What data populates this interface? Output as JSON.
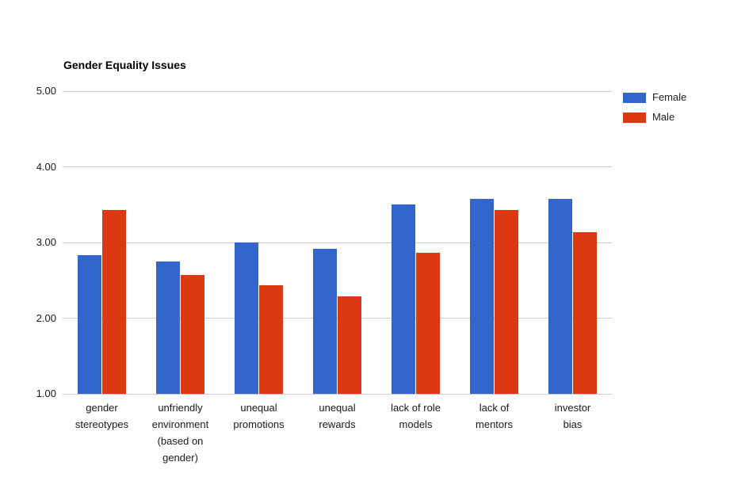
{
  "title": "Gender Equality Issues",
  "legend": {
    "position": "right",
    "items": [
      {
        "label": "Female",
        "color": "#3366CC"
      },
      {
        "label": "Male",
        "color": "#DC3912"
      }
    ]
  },
  "colors": {
    "female_series": "#3366CC",
    "male_series": "#DC3912",
    "gridline": "#cccccc",
    "background": "#ffffff",
    "text": "#1a1a1a"
  },
  "chart_data": {
    "type": "bar",
    "title": "Gender Equality Issues",
    "categories": [
      "gender stereotypes",
      "unfriendly environment (based on gender)",
      "unequal promotions",
      "unequal rewards",
      "lack of role models",
      "lack of mentors",
      "investor bias"
    ],
    "category_label_lines": [
      [
        "gender",
        "stereotypes"
      ],
      [
        "unfriendly",
        "environment",
        "(based on",
        "gender)"
      ],
      [
        "unequal",
        "promotions"
      ],
      [
        "unequal",
        "rewards"
      ],
      [
        "lack of role",
        "models"
      ],
      [
        "lack of",
        "mentors"
      ],
      [
        "investor",
        "bias"
      ]
    ],
    "series": [
      {
        "name": "Female",
        "color": "#3366CC",
        "values": [
          2.83,
          2.75,
          3.0,
          2.92,
          3.5,
          3.58,
          3.58
        ]
      },
      {
        "name": "Male",
        "color": "#DC3912",
        "values": [
          3.43,
          2.57,
          2.43,
          2.29,
          2.86,
          3.43,
          3.14
        ]
      }
    ],
    "xlabel": "",
    "ylabel": "",
    "ylim": [
      1,
      5
    ],
    "yticks": [
      5,
      4,
      3,
      2,
      1
    ],
    "ytick_labels": [
      "5.00",
      "4.00",
      "3.00",
      "2.00",
      "1.00"
    ],
    "grid": true,
    "legend_position": "right"
  }
}
